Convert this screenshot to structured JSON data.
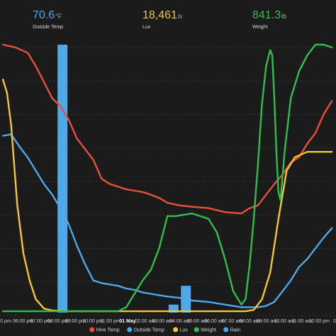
{
  "stats": [
    {
      "value": "70.6",
      "unit": "°F",
      "label": "Outside Temp",
      "color": "#4fa8e8"
    },
    {
      "value": "18,461",
      "unit": "lx",
      "label": "Lux",
      "color": "#f7c531"
    },
    {
      "value": "841.3",
      "unit": "lb",
      "label": "Weight",
      "color": "#2fbf4f"
    }
  ],
  "chart_data": {
    "type": "line",
    "x_ticks": [
      "0 pm",
      "06:00 pm",
      "07:00 pm",
      "08:00 pm",
      "09:00 pm",
      "10:00 pm",
      "11:00 pm",
      "01 May",
      "02:00 am",
      "03:00 am",
      "04:00 am",
      "05:00 am",
      "06:00 am",
      "07:00 am",
      "08:00 am",
      "09:00 am",
      "10:00 am",
      "11:00 am",
      "12:00 pm",
      "01:"
    ],
    "x_range": [
      4.93,
      13.1
    ],
    "y_range": [
      0,
      100
    ],
    "grid": true,
    "legend_position": "bottom",
    "series": [
      {
        "name": "Hive Temp",
        "color": "#e8503a",
        "type": "line",
        "x": [
          5.0,
          5.3,
          5.6,
          5.8,
          6.0,
          6.2,
          6.4,
          6.6,
          6.8,
          7.0,
          7.2,
          7.4,
          7.6,
          7.8,
          8.0,
          8.2,
          8.4,
          8.6,
          8.8,
          9.0,
          9.3,
          9.6,
          10.0,
          10.4,
          10.8,
          11.0,
          11.2,
          11.4,
          11.6,
          11.8,
          12.0,
          12.2,
          12.4,
          12.6,
          12.8,
          13.0
        ],
        "y": [
          100,
          99,
          97,
          92,
          86,
          80,
          77,
          72,
          65,
          61,
          57,
          50,
          48,
          47,
          46,
          45.5,
          45,
          44,
          42.8,
          41,
          40,
          39.5,
          39,
          37.5,
          37,
          39,
          40,
          44,
          48,
          51.5,
          56,
          58,
          63,
          67,
          74,
          79
        ]
      },
      {
        "name": "Outside Temp",
        "color": "#4fa8e8",
        "type": "line",
        "x": [
          5.0,
          5.2,
          5.4,
          5.6,
          5.8,
          6.0,
          6.2,
          6.4,
          6.6,
          6.8,
          7.0,
          7.2,
          7.4,
          7.6,
          7.8,
          8.0,
          8.2,
          8.4,
          8.6,
          8.8,
          9.0,
          9.3,
          9.6,
          10.0,
          10.4,
          10.8,
          11.0,
          11.2,
          11.4,
          11.6,
          11.8,
          12.0,
          12.2,
          12.4,
          12.6,
          12.8,
          13.0
        ],
        "y": [
          66,
          66.5,
          62,
          58,
          53,
          48,
          44,
          39,
          33,
          25,
          18,
          12,
          11,
          10.5,
          10,
          9,
          8.5,
          7.5,
          7,
          6.5,
          6,
          5.5,
          4.5,
          4,
          3,
          2,
          2,
          2,
          2.5,
          4,
          8,
          12,
          17,
          20,
          24,
          28,
          31.5
        ]
      },
      {
        "name": "Lux",
        "color": "#f7c531",
        "type": "line",
        "x": [
          5.0,
          5.1,
          5.2,
          5.35,
          5.5,
          5.65,
          5.8,
          6.0,
          6.2,
          6.5,
          7.0,
          8.0,
          9.0,
          10.0,
          10.6,
          10.9,
          11.1,
          11.3,
          11.5,
          11.7,
          11.9,
          12.1,
          12.4,
          12.7,
          13.0
        ],
        "y": [
          87,
          82,
          70,
          40,
          22,
          12,
          5,
          1.5,
          0.8,
          0.5,
          0.5,
          0.5,
          0.5,
          0.5,
          0.5,
          0.5,
          1,
          5,
          15,
          35,
          53,
          58,
          60,
          60,
          60
        ]
      },
      {
        "name": "Weight",
        "color": "#2fbf4f",
        "type": "line",
        "x": [
          5.0,
          6.0,
          6.5,
          7.0,
          7.5,
          7.8,
          8.0,
          8.2,
          8.4,
          8.6,
          8.8,
          9.0,
          9.2,
          9.6,
          9.8,
          10.0,
          10.2,
          10.4,
          10.6,
          10.8,
          10.9,
          11.0,
          11.1,
          11.2,
          11.3,
          11.4,
          11.5,
          11.55,
          11.6,
          11.65,
          11.7,
          11.75,
          11.85,
          12.0,
          12.2,
          12.4,
          12.6,
          12.8,
          13.0
        ],
        "y": [
          0.5,
          0.5,
          0.5,
          0.5,
          0.5,
          0.5,
          2,
          7,
          12,
          16,
          24,
          36,
          36,
          37,
          36,
          35,
          30,
          20,
          8,
          3,
          5,
          18,
          35,
          55,
          78,
          92,
          98,
          96,
          80,
          60,
          45,
          42,
          60,
          80,
          90,
          96,
          100,
          100,
          99
        ]
      },
      {
        "name": "Rain",
        "color": "#4fa8e8",
        "type": "bar",
        "x": [
          6.45,
          9.15,
          9.45
        ],
        "y": [
          100,
          3,
          10
        ]
      }
    ]
  }
}
